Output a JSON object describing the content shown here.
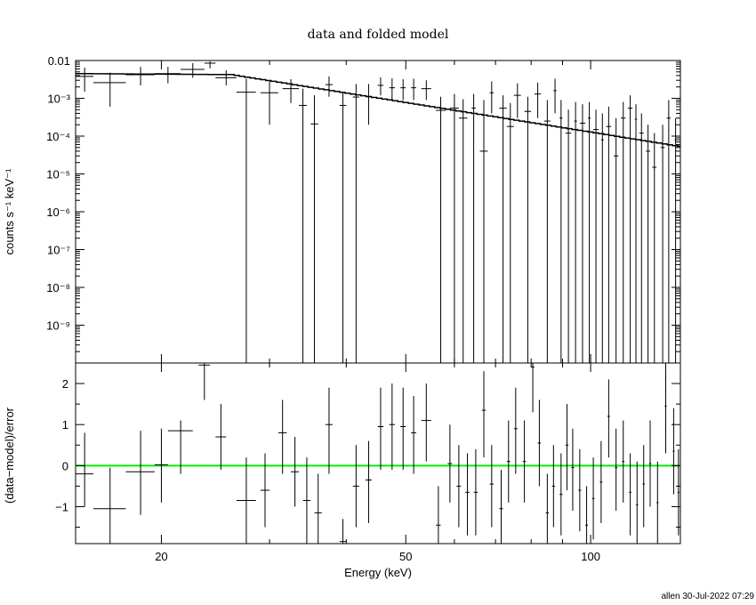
{
  "chart_data": [
    {
      "type": "scatter",
      "panel": "top",
      "title": "data and folded model",
      "ylabel": "counts s⁻¹ keV⁻¹",
      "xscale": "log",
      "yscale": "log",
      "xlim": [
        14.5,
        140
      ],
      "ylim": [
        1e-10,
        0.01
      ],
      "yticks": [
        {
          "value": 0.01,
          "label": "0.01"
        },
        {
          "value": 0.001,
          "label": "10⁻³"
        },
        {
          "value": 0.0001,
          "label": "10⁻⁴"
        },
        {
          "value": 1e-05,
          "label": "10⁻⁵"
        },
        {
          "value": 1e-06,
          "label": "10⁻⁶"
        },
        {
          "value": 1e-07,
          "label": "10⁻⁷"
        },
        {
          "value": 1e-08,
          "label": "10⁻⁸"
        },
        {
          "value": 1e-09,
          "label": "10⁻⁹"
        }
      ],
      "data": [
        {
          "x": 15.0,
          "xlo": 14.5,
          "xhi": 15.5,
          "y": 0.0038,
          "ylo": 0.0015,
          "yhi": 0.0065
        },
        {
          "x": 16.5,
          "xlo": 15.5,
          "xhi": 17.5,
          "y": 0.0026,
          "ylo": 0.0006,
          "yhi": 0.0048
        },
        {
          "x": 18.5,
          "xlo": 17.5,
          "xhi": 19.5,
          "y": 0.0042,
          "ylo": 0.0022,
          "yhi": 0.0068
        },
        {
          "x": 20.5,
          "xlo": 19.5,
          "xhi": 21.5,
          "y": 0.0045,
          "ylo": 0.0025,
          "yhi": 0.0068
        },
        {
          "x": 22.5,
          "xlo": 21.5,
          "xhi": 23.5,
          "y": 0.0058,
          "ylo": 0.0035,
          "yhi": 0.0085
        },
        {
          "x": 24.0,
          "xlo": 23.5,
          "xhi": 24.5,
          "y": 0.0085,
          "ylo": 0.0062,
          "yhi": 0.0095
        },
        {
          "x": 25.5,
          "xlo": 24.5,
          "xhi": 26.5,
          "y": 0.0035,
          "ylo": 0.0022,
          "yhi": 0.0055
        },
        {
          "x": 27.5,
          "xlo": 26.5,
          "xhi": 28.5,
          "y": 0.00145,
          "ylo": 1e-10,
          "yhi": 0.0033
        },
        {
          "x": 30.0,
          "xlo": 29.0,
          "xhi": 31.0,
          "y": 0.0014,
          "ylo": 0.0002,
          "yhi": 0.0028
        },
        {
          "x": 32.5,
          "xlo": 31.5,
          "xhi": 33.5,
          "y": 0.0018,
          "ylo": 0.00075,
          "yhi": 0.0032
        },
        {
          "x": 34.0,
          "xlo": 33.5,
          "xhi": 34.5,
          "y": 0.00065,
          "ylo": 1e-10,
          "yhi": 0.0018
        },
        {
          "x": 35.5,
          "xlo": 35.0,
          "xhi": 36.0,
          "y": 0.00021,
          "ylo": 1e-10,
          "yhi": 0.0012
        },
        {
          "x": 37.5,
          "xlo": 37.0,
          "xhi": 38.0,
          "y": 0.0023,
          "ylo": 0.0011,
          "yhi": 0.0038
        },
        {
          "x": 39.5,
          "xlo": 39.0,
          "xhi": 40.0,
          "y": 0.00065,
          "ylo": 1e-10,
          "yhi": 0.0015
        },
        {
          "x": 41.5,
          "xlo": 41.0,
          "xhi": 42.0,
          "y": 0.00108,
          "ylo": 1e-10,
          "yhi": 0.0024
        },
        {
          "x": 43.5,
          "xlo": 43.0,
          "xhi": 44.0,
          "y": 0.0011,
          "ylo": 0.0002,
          "yhi": 0.0024
        },
        {
          "x": 45.5,
          "xlo": 45.0,
          "xhi": 46.0,
          "y": 0.0022,
          "ylo": 0.0012,
          "yhi": 0.0036
        },
        {
          "x": 47.5,
          "xlo": 47.0,
          "xhi": 48.0,
          "y": 0.0019,
          "ylo": 0.0009,
          "yhi": 0.0034
        },
        {
          "x": 49.5,
          "xlo": 49.0,
          "xhi": 50.0,
          "y": 0.0019,
          "ylo": 0.0009,
          "yhi": 0.0032
        },
        {
          "x": 51.5,
          "xlo": 51.0,
          "xhi": 52.0,
          "y": 0.0019,
          "ylo": 0.0009,
          "yhi": 0.0033
        },
        {
          "x": 54.0,
          "xlo": 53.0,
          "xhi": 55.0,
          "y": 0.0018,
          "ylo": 0.0009,
          "yhi": 0.003
        },
        {
          "x": 57.0,
          "xlo": 56.0,
          "xhi": 58.0,
          "y": 0.00048,
          "ylo": 1e-10,
          "yhi": 0.0011
        },
        {
          "x": 60.0,
          "xlo": 59.0,
          "xhi": 61.0,
          "y": 0.00055,
          "ylo": 1e-10,
          "yhi": 0.0013
        },
        {
          "x": 62.0,
          "xlo": 61.0,
          "xhi": 63.0,
          "y": 0.0003,
          "ylo": 1e-10,
          "yhi": 0.00095
        },
        {
          "x": 64.5,
          "xlo": 64.0,
          "xhi": 65.0,
          "y": 0.00055,
          "ylo": 1e-10,
          "yhi": 0.0013
        },
        {
          "x": 67.0,
          "xlo": 66.0,
          "xhi": 68.0,
          "y": 4e-05,
          "ylo": 1e-10,
          "yhi": 0.0009
        },
        {
          "x": 69.0,
          "xlo": 68.5,
          "xhi": 69.5,
          "y": 0.0014,
          "ylo": 0.0004,
          "yhi": 0.0028
        },
        {
          "x": 72.0,
          "xlo": 71.0,
          "xhi": 73.0,
          "y": 0.00055,
          "ylo": 1e-10,
          "yhi": 0.0012
        },
        {
          "x": 74.0,
          "xlo": 73.0,
          "xhi": 75.0,
          "y": 0.00018,
          "ylo": 1e-10,
          "yhi": 0.00075
        },
        {
          "x": 76.0,
          "xlo": 75.0,
          "xhi": 77.0,
          "y": 0.0012,
          "ylo": 0.0003,
          "yhi": 0.0025
        },
        {
          "x": 79.0,
          "xlo": 78.0,
          "xhi": 80.0,
          "y": 0.00045,
          "ylo": 1e-10,
          "yhi": 0.0011
        },
        {
          "x": 82.0,
          "xlo": 81.0,
          "xhi": 83.0,
          "y": 0.0013,
          "ylo": 0.0003,
          "yhi": 0.0026
        },
        {
          "x": 85.0,
          "xlo": 84.0,
          "xhi": 86.0,
          "y": 0.00025,
          "ylo": 1e-10,
          "yhi": 0.0009
        },
        {
          "x": 87.5,
          "xlo": 87.0,
          "xhi": 88.0,
          "y": 0.0016,
          "ylo": 0.0004,
          "yhi": 0.0033
        },
        {
          "x": 89.5,
          "xlo": 89.0,
          "xhi": 90.0,
          "y": 0.0003,
          "ylo": 1e-10,
          "yhi": 0.0009
        },
        {
          "x": 92.0,
          "xlo": 91.0,
          "xhi": 93.0,
          "y": 0.00012,
          "ylo": 1e-10,
          "yhi": 0.0005
        },
        {
          "x": 94.5,
          "xlo": 94.0,
          "xhi": 95.0,
          "y": 0.00025,
          "ylo": 1e-10,
          "yhi": 0.0008
        },
        {
          "x": 97.0,
          "xlo": 96.0,
          "xhi": 98.0,
          "y": 0.00022,
          "ylo": 1e-10,
          "yhi": 0.0007
        },
        {
          "x": 99.5,
          "xlo": 99.0,
          "xhi": 100.0,
          "y": 0.0003,
          "ylo": 1e-10,
          "yhi": 0.0008
        },
        {
          "x": 102.0,
          "xlo": 101.0,
          "xhi": 103.0,
          "y": 0.00015,
          "ylo": 1e-10,
          "yhi": 0.0005
        },
        {
          "x": 104.5,
          "xlo": 104.0,
          "xhi": 105.0,
          "y": 8e-05,
          "ylo": 1e-10,
          "yhi": 0.0004
        },
        {
          "x": 107.0,
          "xlo": 106.0,
          "xhi": 108.0,
          "y": 0.00018,
          "ylo": 1e-10,
          "yhi": 0.0006
        },
        {
          "x": 110.0,
          "xlo": 109.0,
          "xhi": 111.0,
          "y": 3e-05,
          "ylo": 1e-10,
          "yhi": 0.0003
        },
        {
          "x": 113.0,
          "xlo": 112.0,
          "xhi": 114.0,
          "y": 0.0003,
          "ylo": 1e-10,
          "yhi": 0.0008
        },
        {
          "x": 116.0,
          "xlo": 115.0,
          "xhi": 117.0,
          "y": 0.00055,
          "ylo": 1e-10,
          "yhi": 0.0012
        },
        {
          "x": 118.5,
          "xlo": 118.0,
          "xhi": 119.0,
          "y": 0.00028,
          "ylo": 1e-10,
          "yhi": 0.0007
        },
        {
          "x": 121.0,
          "xlo": 120.0,
          "xhi": 122.0,
          "y": 0.00012,
          "ylo": 1e-10,
          "yhi": 0.0004
        },
        {
          "x": 124.0,
          "xlo": 123.0,
          "xhi": 125.0,
          "y": 4e-05,
          "ylo": 1e-10,
          "yhi": 0.0002
        },
        {
          "x": 127.0,
          "xlo": 126.0,
          "xhi": 128.0,
          "y": 1.5e-05,
          "ylo": 1e-10,
          "yhi": 0.00012
        },
        {
          "x": 131.0,
          "xlo": 130.0,
          "xhi": 132.0,
          "y": 5e-05,
          "ylo": 1e-10,
          "yhi": 0.0002
        },
        {
          "x": 134.0,
          "xlo": 133.0,
          "xhi": 135.0,
          "y": 0.0003,
          "ylo": 1e-10,
          "yhi": 0.0009
        },
        {
          "x": 137.5,
          "xlo": 137.0,
          "xhi": 138.0,
          "y": 8e-05,
          "ylo": 1e-10,
          "yhi": 0.0003
        }
      ],
      "model": {
        "norm": 0.0045,
        "e0": 14.5,
        "e_break": 26.0,
        "idx_low": 0.1,
        "idx_high": 2.6
      }
    },
    {
      "type": "scatter",
      "panel": "bottom",
      "xlabel": "Energy (keV)",
      "ylabel": "(data−model)/error",
      "xscale": "log",
      "xlim": [
        14.5,
        140
      ],
      "ylim": [
        -1.9,
        2.5
      ],
      "xticks": [
        {
          "value": 20,
          "label": "20"
        },
        {
          "value": 50,
          "label": "50"
        },
        {
          "value": 100,
          "label": "100"
        }
      ],
      "yticks": [
        {
          "value": -1,
          "label": "−1"
        },
        {
          "value": 0,
          "label": "0"
        },
        {
          "value": 1,
          "label": "1"
        },
        {
          "value": 2,
          "label": "2"
        }
      ],
      "zero_line_color": "#00ee00",
      "data": [
        {
          "x": 15.0,
          "xlo": 14.5,
          "xhi": 15.5,
          "y": -0.2,
          "ylo": -1.0,
          "yhi": 0.8
        },
        {
          "x": 16.5,
          "xlo": 15.5,
          "xhi": 17.5,
          "y": -1.05,
          "ylo": -1.9,
          "yhi": -0.05
        },
        {
          "x": 18.5,
          "xlo": 17.5,
          "xhi": 19.5,
          "y": -0.15,
          "ylo": -1.2,
          "yhi": 0.85
        },
        {
          "x": 20.0,
          "xlo": 19.5,
          "xhi": 20.5,
          "y": 0.02,
          "ylo": -0.9,
          "yhi": 0.9
        },
        {
          "x": 21.5,
          "xlo": 20.5,
          "xhi": 22.5,
          "y": 0.85,
          "ylo": -0.2,
          "yhi": 1.1
        },
        {
          "x": 23.5,
          "xlo": 23.0,
          "xhi": 24.0,
          "y": 2.45,
          "ylo": 1.6,
          "yhi": 2.5
        },
        {
          "x": 25.0,
          "xlo": 24.5,
          "xhi": 25.5,
          "y": 0.7,
          "ylo": -0.1,
          "yhi": 1.5
        },
        {
          "x": 27.5,
          "xlo": 26.5,
          "xhi": 28.5,
          "y": -0.85,
          "ylo": -1.9,
          "yhi": 0.2
        },
        {
          "x": 29.5,
          "xlo": 29.0,
          "xhi": 30.0,
          "y": -0.6,
          "ylo": -1.5,
          "yhi": 0.3
        },
        {
          "x": 31.5,
          "xlo": 31.0,
          "xhi": 32.0,
          "y": 0.8,
          "ylo": -0.2,
          "yhi": 1.6
        },
        {
          "x": 33.0,
          "xlo": 32.5,
          "xhi": 33.5,
          "y": -0.15,
          "ylo": -1.0,
          "yhi": 0.7
        },
        {
          "x": 34.5,
          "xlo": 34.0,
          "xhi": 35.0,
          "y": -0.85,
          "ylo": -1.9,
          "yhi": 0.2
        },
        {
          "x": 36.0,
          "xlo": 35.5,
          "xhi": 36.5,
          "y": -1.15,
          "ylo": -1.9,
          "yhi": -0.2
        },
        {
          "x": 37.5,
          "xlo": 37.0,
          "xhi": 38.0,
          "y": 1.0,
          "ylo": -0.2,
          "yhi": 1.9
        },
        {
          "x": 39.5,
          "xlo": 39.0,
          "xhi": 40.0,
          "y": -1.85,
          "ylo": -1.9,
          "yhi": -1.3
        },
        {
          "x": 41.5,
          "xlo": 41.0,
          "xhi": 42.0,
          "y": -0.5,
          "ylo": -1.5,
          "yhi": 0.5
        },
        {
          "x": 43.5,
          "xlo": 43.0,
          "xhi": 44.0,
          "y": -0.35,
          "ylo": -1.4,
          "yhi": 0.6
        },
        {
          "x": 45.5,
          "xlo": 45.0,
          "xhi": 46.0,
          "y": 0.95,
          "ylo": -0.1,
          "yhi": 1.9
        },
        {
          "x": 47.5,
          "xlo": 47.0,
          "xhi": 48.0,
          "y": 1.0,
          "ylo": -0.1,
          "yhi": 2.0
        },
        {
          "x": 49.5,
          "xlo": 49.0,
          "xhi": 50.0,
          "y": 0.95,
          "ylo": -0.1,
          "yhi": 1.9
        },
        {
          "x": 51.5,
          "xlo": 51.0,
          "xhi": 52.0,
          "y": 0.8,
          "ylo": -0.2,
          "yhi": 1.7
        },
        {
          "x": 54.0,
          "xlo": 53.0,
          "xhi": 55.0,
          "y": 1.1,
          "ylo": 0.1,
          "yhi": 2.0
        },
        {
          "x": 56.5,
          "xlo": 56.0,
          "xhi": 57.0,
          "y": -1.45,
          "ylo": -1.9,
          "yhi": -0.5
        },
        {
          "x": 59.0,
          "xlo": 58.5,
          "xhi": 59.5,
          "y": 0.05,
          "ylo": -0.9,
          "yhi": 1.0
        },
        {
          "x": 61.0,
          "xlo": 60.5,
          "xhi": 61.5,
          "y": -0.5,
          "ylo": -1.5,
          "yhi": 0.5
        },
        {
          "x": 63.0,
          "xlo": 62.5,
          "xhi": 63.5,
          "y": -0.65,
          "ylo": -1.7,
          "yhi": 0.3
        },
        {
          "x": 65.0,
          "xlo": 64.5,
          "xhi": 65.5,
          "y": -0.65,
          "ylo": -1.7,
          "yhi": 0.4
        },
        {
          "x": 67.0,
          "xlo": 66.5,
          "xhi": 67.5,
          "y": 1.35,
          "ylo": 0.2,
          "yhi": 2.3
        },
        {
          "x": 69.0,
          "xlo": 68.5,
          "xhi": 69.5,
          "y": -0.45,
          "ylo": -1.5,
          "yhi": 0.5
        },
        {
          "x": 71.5,
          "xlo": 71.0,
          "xhi": 72.0,
          "y": -1.05,
          "ylo": -1.9,
          "yhi": -0.1
        },
        {
          "x": 73.5,
          "xlo": 73.0,
          "xhi": 74.0,
          "y": 0.1,
          "ylo": -0.9,
          "yhi": 1.1
        },
        {
          "x": 75.5,
          "xlo": 75.0,
          "xhi": 76.0,
          "y": 0.9,
          "ylo": -0.2,
          "yhi": 1.9
        },
        {
          "x": 78.0,
          "xlo": 77.5,
          "xhi": 78.5,
          "y": 0.1,
          "ylo": -0.9,
          "yhi": 1.1
        },
        {
          "x": 80.5,
          "xlo": 80.0,
          "xhi": 81.0,
          "y": 2.4,
          "ylo": 1.3,
          "yhi": 2.5
        },
        {
          "x": 82.5,
          "xlo": 82.0,
          "xhi": 83.0,
          "y": 0.55,
          "ylo": -0.5,
          "yhi": 1.6
        },
        {
          "x": 85.0,
          "xlo": 84.5,
          "xhi": 85.5,
          "y": -1.15,
          "ylo": -1.9,
          "yhi": -0.2
        },
        {
          "x": 87.0,
          "xlo": 86.5,
          "xhi": 87.5,
          "y": -0.5,
          "ylo": -1.5,
          "yhi": 0.5
        },
        {
          "x": 89.5,
          "xlo": 89.0,
          "xhi": 90.0,
          "y": -0.7,
          "ylo": -1.7,
          "yhi": 0.3
        },
        {
          "x": 91.5,
          "xlo": 91.0,
          "xhi": 92.0,
          "y": 0.5,
          "ylo": -0.6,
          "yhi": 1.5
        },
        {
          "x": 93.5,
          "xlo": 93.0,
          "xhi": 94.0,
          "y": -0.05,
          "ylo": -1.1,
          "yhi": 0.9
        },
        {
          "x": 96.0,
          "xlo": 95.5,
          "xhi": 96.5,
          "y": -0.6,
          "ylo": -1.6,
          "yhi": 0.4
        },
        {
          "x": 98.5,
          "xlo": 98.0,
          "xhi": 99.0,
          "y": -1.45,
          "ylo": -1.9,
          "yhi": -0.5
        },
        {
          "x": 101.0,
          "xlo": 100.5,
          "xhi": 101.5,
          "y": -0.8,
          "ylo": -1.8,
          "yhi": 0.2
        },
        {
          "x": 104.0,
          "xlo": 103.5,
          "xhi": 104.5,
          "y": -0.4,
          "ylo": -1.4,
          "yhi": 0.6
        },
        {
          "x": 107.0,
          "xlo": 106.5,
          "xhi": 107.5,
          "y": 1.2,
          "ylo": 0.2,
          "yhi": 2.1
        },
        {
          "x": 110.0,
          "xlo": 109.5,
          "xhi": 110.5,
          "y": -0.05,
          "ylo": -1.1,
          "yhi": 0.9
        },
        {
          "x": 113.0,
          "xlo": 112.5,
          "xhi": 113.5,
          "y": 0.1,
          "ylo": -0.9,
          "yhi": 1.1
        },
        {
          "x": 116.0,
          "xlo": 115.5,
          "xhi": 116.5,
          "y": -0.65,
          "ylo": -1.7,
          "yhi": 0.3
        },
        {
          "x": 119.0,
          "xlo": 118.5,
          "xhi": 119.5,
          "y": -0.95,
          "ylo": -1.9,
          "yhi": 0.1
        },
        {
          "x": 122.0,
          "xlo": 121.5,
          "xhi": 122.5,
          "y": -0.45,
          "ylo": -1.5,
          "yhi": 0.5
        },
        {
          "x": 125.0,
          "xlo": 124.5,
          "xhi": 125.5,
          "y": 0.05,
          "ylo": -1.0,
          "yhi": 1.1
        },
        {
          "x": 128.5,
          "xlo": 128.0,
          "xhi": 129.0,
          "y": -0.9,
          "ylo": -1.9,
          "yhi": 0.1
        },
        {
          "x": 132.5,
          "xlo": 132.0,
          "xhi": 133.0,
          "y": 1.45,
          "ylo": 0.3,
          "yhi": 2.5
        },
        {
          "x": 136.5,
          "xlo": 136.0,
          "xhi": 137.0,
          "y": 0.35,
          "ylo": -0.7,
          "yhi": 1.4
        },
        {
          "x": 139.0,
          "xlo": 138.5,
          "xhi": 139.5,
          "y": -0.65,
          "ylo": -1.7,
          "yhi": 0.4
        }
      ]
    }
  ],
  "footer": "allen 30-Jul-2022 07:29"
}
